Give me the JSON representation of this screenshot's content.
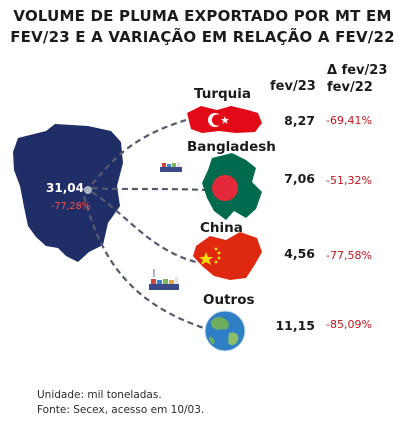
{
  "title_line1": "VOLUME DE PLUMA EXPORTADO POR MT EM",
  "title_line2": "FEV/23 E A VARIAÇÃO EM RELAÇÃO A  FEV/22",
  "col_value_header": "fev/23",
  "col_change_header_line1": "Δ fev/23",
  "col_change_header_line2": "fev/22",
  "origin": {
    "total": "31,04",
    "change": "-77,28%"
  },
  "footer_line1": "Unidade: mil toneladas.",
  "footer_line2": "Fonte: Secex, acesso em 10/03.",
  "chart_data": {
    "type": "table",
    "title": "VOLUME DE PLUMA EXPORTADO POR MT EM FEV/23 E A VARIAÇÃO EM RELAÇÃO A  FEV/22",
    "unit": "mil toneladas",
    "columns": [
      "fev/23",
      "Δ fev/23 fev/22"
    ],
    "origin_total": {
      "value": 31.04,
      "label": "31,04",
      "change": "-77,28%"
    },
    "rows": [
      {
        "name": "Turquia",
        "value": 8.27,
        "value_label": "8,27",
        "change": "-69,41%",
        "change_value": -69.41
      },
      {
        "name": "Bangladesh",
        "value": 7.06,
        "value_label": "7,06",
        "change": "-51,32%",
        "change_value": -51.32
      },
      {
        "name": "China",
        "value": 4.56,
        "value_label": "4,56",
        "change": "-77,58%",
        "change_value": -77.58
      },
      {
        "name": "Outros",
        "value": 11.15,
        "value_label": "11,15",
        "change": "-85,09%",
        "change_value": -85.09
      }
    ]
  },
  "colors": {
    "state": "#1f2e66",
    "negative": "#c0161c",
    "turkey_red": "#e30a17",
    "bangladesh_green": "#006a4e",
    "china_red": "#de2910",
    "china_yellow": "#ffde00",
    "route": "#555a6e"
  },
  "icons": {
    "state_map": "mato-grosso-map",
    "ships": "cargo-ship-icon",
    "turkey": "turkey-flag-map",
    "bangladesh": "bangladesh-flag-map",
    "china": "china-flag-map",
    "world": "globe-icon"
  }
}
